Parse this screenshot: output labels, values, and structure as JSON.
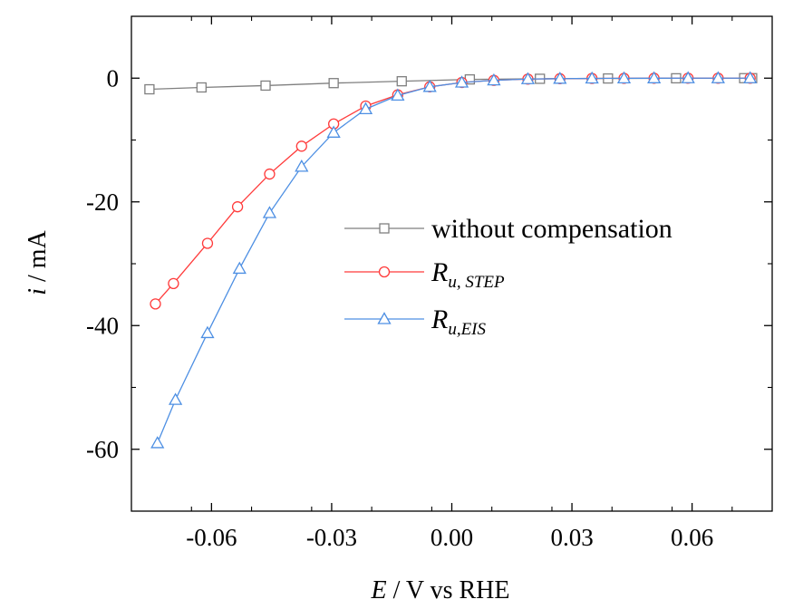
{
  "chart_data": {
    "type": "line",
    "title": "",
    "xlabel": {
      "var": "E",
      "rest": " / V vs RHE"
    },
    "ylabel": {
      "var": "i",
      "rest": " / mA"
    },
    "xlim": [
      -0.08,
      0.08
    ],
    "ylim": [
      -70,
      10
    ],
    "xticks": [
      -0.06,
      -0.03,
      0.0,
      0.03,
      0.06
    ],
    "xtick_labels": [
      "-0.06",
      "-0.03",
      "0.00",
      "0.03",
      "0.06"
    ],
    "yticks": [
      -60,
      -40,
      -20,
      0
    ],
    "ytick_labels": [
      "-60",
      "-40",
      "-20",
      "0"
    ],
    "legend_position": "center-right",
    "grid": false,
    "series": [
      {
        "name": "without  compensation",
        "label_main": "without  compensation",
        "label_sub": "",
        "color": "#7f7f7f",
        "marker": "square",
        "x": [
          -0.0755,
          -0.0625,
          -0.0465,
          -0.0295,
          -0.0125,
          0.0045,
          0.022,
          0.039,
          0.056,
          0.073,
          0.075
        ],
        "y": [
          -1.8,
          -1.5,
          -1.2,
          -0.8,
          -0.5,
          -0.2,
          -0.1,
          -0.05,
          -0.02,
          0.0,
          0.0
        ]
      },
      {
        "name": "Ru, STEP",
        "label_main": "R",
        "label_sub": "u, STEP",
        "color": "#ff3b3b",
        "marker": "circle",
        "x": [
          -0.074,
          -0.0695,
          -0.061,
          -0.0535,
          -0.0455,
          -0.0375,
          -0.0295,
          -0.0215,
          -0.0135,
          -0.0055,
          0.0025,
          0.0105,
          0.019,
          0.027,
          0.035,
          0.043,
          0.0505,
          0.059,
          0.0665,
          0.0745
        ],
        "y": [
          -36.5,
          -33.2,
          -26.7,
          -20.8,
          -15.5,
          -11.0,
          -7.4,
          -4.5,
          -2.7,
          -1.4,
          -0.7,
          -0.35,
          -0.15,
          -0.08,
          -0.04,
          -0.02,
          -0.01,
          0.0,
          0.0,
          0.0
        ]
      },
      {
        "name": "Ru,EIS",
        "label_main": "R",
        "label_sub": "u,EIS",
        "color": "#4d8fe3",
        "marker": "triangle",
        "x": [
          -0.0735,
          -0.069,
          -0.061,
          -0.053,
          -0.0455,
          -0.0375,
          -0.0295,
          -0.0215,
          -0.0135,
          -0.0055,
          0.0025,
          0.0105,
          0.019,
          0.027,
          0.035,
          0.043,
          0.0505,
          0.059,
          0.0665,
          0.0745
        ],
        "y": [
          -59.0,
          -52.0,
          -41.2,
          -30.8,
          -21.8,
          -14.3,
          -8.8,
          -5.0,
          -2.8,
          -1.4,
          -0.7,
          -0.35,
          -0.15,
          -0.08,
          -0.04,
          -0.02,
          -0.01,
          0.0,
          0.0,
          0.0
        ]
      }
    ]
  }
}
